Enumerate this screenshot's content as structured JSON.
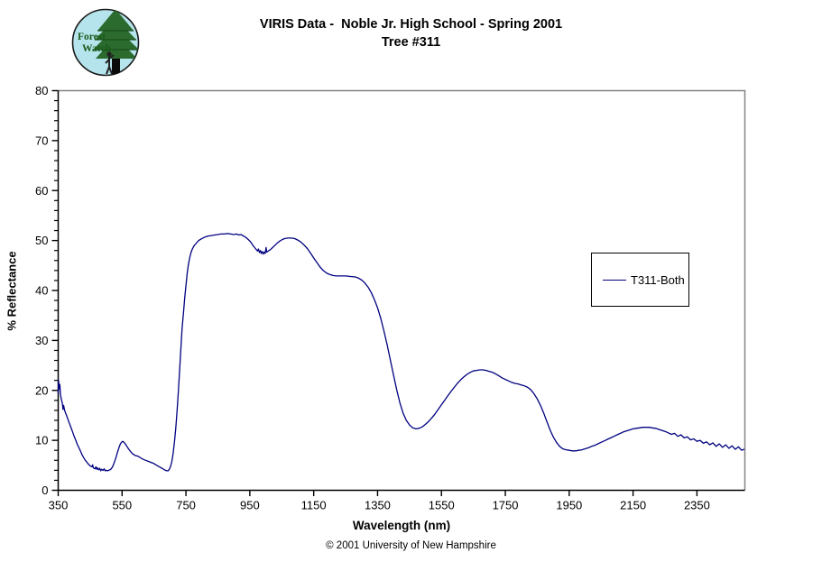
{
  "header": {
    "title_line1": "VIRIS Data -  Noble Jr. High School - Spring 2001",
    "title_line2": "Tree #311",
    "logo": {
      "text_line1": "Forest",
      "text_line2": "Watch"
    }
  },
  "footer": {
    "copyright": "© 2001 University of New Hampshire"
  },
  "colors": {
    "series_line": "#000080",
    "axis": "#000000",
    "plot_border_gray": "#848484",
    "logo_circle_fill": "#b5e4ec",
    "logo_tree_green": "#2c6b2e",
    "logo_text_green": "#1a5a1a"
  },
  "chart_data": {
    "type": "line",
    "title": "VIRIS Data - Noble Jr. High School - Spring 2001, Tree #311",
    "xlabel": "Wavelength (nm)",
    "ylabel": "% Reflectance",
    "xlim": [
      350,
      2500
    ],
    "ylim": [
      0,
      80
    ],
    "x_ticks": [
      350,
      550,
      750,
      950,
      1150,
      1350,
      1550,
      1750,
      1950,
      2150,
      2350
    ],
    "y_ticks": [
      0,
      10,
      20,
      30,
      40,
      50,
      60,
      70,
      80
    ],
    "y_minor_step": 2,
    "grid": false,
    "legend": {
      "position": "middle-right",
      "entries": [
        "T311-Both"
      ]
    },
    "series": [
      {
        "name": "T311-Both",
        "points": [
          [
            350,
            19.5
          ],
          [
            351,
            22.0
          ],
          [
            353,
            20.3
          ],
          [
            355,
            21.2
          ],
          [
            357,
            19.2
          ],
          [
            360,
            18.2
          ],
          [
            363,
            17.4
          ],
          [
            365,
            16.2
          ],
          [
            367,
            17.0
          ],
          [
            370,
            16.0
          ],
          [
            373,
            15.5
          ],
          [
            376,
            15.0
          ],
          [
            380,
            14.3
          ],
          [
            384,
            13.6
          ],
          [
            388,
            12.9
          ],
          [
            392,
            12.2
          ],
          [
            396,
            11.5
          ],
          [
            400,
            10.8
          ],
          [
            405,
            10.0
          ],
          [
            410,
            9.2
          ],
          [
            415,
            8.5
          ],
          [
            420,
            7.8
          ],
          [
            425,
            7.1
          ],
          [
            430,
            6.5
          ],
          [
            435,
            6.0
          ],
          [
            440,
            5.6
          ],
          [
            445,
            5.2
          ],
          [
            450,
            4.9
          ],
          [
            455,
            4.7
          ],
          [
            458,
            5.1
          ],
          [
            460,
            4.5
          ],
          [
            465,
            4.3
          ],
          [
            468,
            4.7
          ],
          [
            470,
            4.2
          ],
          [
            473,
            4.5
          ],
          [
            476,
            4.1
          ],
          [
            480,
            4.4
          ],
          [
            483,
            3.9
          ],
          [
            486,
            4.2
          ],
          [
            490,
            4.0
          ],
          [
            494,
            4.3
          ],
          [
            497,
            3.9
          ],
          [
            500,
            4.0
          ],
          [
            504,
            3.9
          ],
          [
            508,
            4.0
          ],
          [
            512,
            4.1
          ],
          [
            516,
            4.3
          ],
          [
            520,
            4.7
          ],
          [
            524,
            5.3
          ],
          [
            528,
            6.0
          ],
          [
            532,
            6.8
          ],
          [
            536,
            7.7
          ],
          [
            540,
            8.5
          ],
          [
            544,
            9.2
          ],
          [
            548,
            9.6
          ],
          [
            552,
            9.8
          ],
          [
            556,
            9.6
          ],
          [
            560,
            9.3
          ],
          [
            565,
            8.8
          ],
          [
            570,
            8.3
          ],
          [
            575,
            7.9
          ],
          [
            580,
            7.5
          ],
          [
            585,
            7.2
          ],
          [
            590,
            7.0
          ],
          [
            595,
            6.9
          ],
          [
            600,
            6.8
          ],
          [
            608,
            6.5
          ],
          [
            616,
            6.2
          ],
          [
            624,
            6.0
          ],
          [
            632,
            5.8
          ],
          [
            640,
            5.6
          ],
          [
            648,
            5.4
          ],
          [
            656,
            5.1
          ],
          [
            664,
            4.8
          ],
          [
            672,
            4.5
          ],
          [
            680,
            4.2
          ],
          [
            686,
            4.0
          ],
          [
            690,
            3.9
          ],
          [
            694,
            3.9
          ],
          [
            698,
            4.2
          ],
          [
            702,
            4.8
          ],
          [
            706,
            5.8
          ],
          [
            710,
            7.4
          ],
          [
            714,
            9.6
          ],
          [
            718,
            12.4
          ],
          [
            722,
            15.8
          ],
          [
            726,
            19.6
          ],
          [
            730,
            23.8
          ],
          [
            734,
            28.2
          ],
          [
            738,
            32.4
          ],
          [
            742,
            35.2
          ],
          [
            746,
            38.5
          ],
          [
            750,
            41.0
          ],
          [
            754,
            43.5
          ],
          [
            758,
            45.3
          ],
          [
            762,
            46.6
          ],
          [
            766,
            47.6
          ],
          [
            770,
            48.3
          ],
          [
            775,
            48.9
          ],
          [
            780,
            49.3
          ],
          [
            790,
            50.0
          ],
          [
            800,
            50.4
          ],
          [
            810,
            50.7
          ],
          [
            820,
            50.9
          ],
          [
            830,
            51.0
          ],
          [
            840,
            51.1
          ],
          [
            850,
            51.2
          ],
          [
            860,
            51.3
          ],
          [
            870,
            51.3
          ],
          [
            880,
            51.4
          ],
          [
            890,
            51.3
          ],
          [
            900,
            51.2
          ],
          [
            908,
            51.3
          ],
          [
            915,
            51.1
          ],
          [
            922,
            51.2
          ],
          [
            930,
            50.9
          ],
          [
            938,
            50.6
          ],
          [
            945,
            50.2
          ],
          [
            950,
            49.9
          ],
          [
            955,
            49.5
          ],
          [
            960,
            49.0
          ],
          [
            965,
            48.6
          ],
          [
            970,
            48.2
          ],
          [
            974,
            47.9
          ],
          [
            977,
            48.3
          ],
          [
            980,
            47.6
          ],
          [
            983,
            48.0
          ],
          [
            986,
            47.4
          ],
          [
            989,
            47.8
          ],
          [
            992,
            47.3
          ],
          [
            995,
            47.7
          ],
          [
            998,
            47.4
          ],
          [
            1001,
            48.6
          ],
          [
            1003,
            47.7
          ],
          [
            1006,
            47.8
          ],
          [
            1010,
            48.0
          ],
          [
            1015,
            48.2
          ],
          [
            1020,
            48.5
          ],
          [
            1028,
            49.0
          ],
          [
            1036,
            49.5
          ],
          [
            1044,
            49.9
          ],
          [
            1052,
            50.2
          ],
          [
            1060,
            50.4
          ],
          [
            1070,
            50.5
          ],
          [
            1080,
            50.5
          ],
          [
            1090,
            50.4
          ],
          [
            1100,
            50.1
          ],
          [
            1110,
            49.7
          ],
          [
            1120,
            49.1
          ],
          [
            1130,
            48.4
          ],
          [
            1140,
            47.5
          ],
          [
            1150,
            46.5
          ],
          [
            1160,
            45.6
          ],
          [
            1170,
            44.7
          ],
          [
            1180,
            44.0
          ],
          [
            1190,
            43.5
          ],
          [
            1200,
            43.2
          ],
          [
            1210,
            43.0
          ],
          [
            1220,
            42.9
          ],
          [
            1235,
            42.9
          ],
          [
            1250,
            42.9
          ],
          [
            1265,
            42.8
          ],
          [
            1280,
            42.7
          ],
          [
            1290,
            42.5
          ],
          [
            1300,
            42.1
          ],
          [
            1310,
            41.5
          ],
          [
            1320,
            40.7
          ],
          [
            1330,
            39.6
          ],
          [
            1340,
            38.2
          ],
          [
            1350,
            36.5
          ],
          [
            1360,
            34.4
          ],
          [
            1370,
            31.9
          ],
          [
            1380,
            29.1
          ],
          [
            1390,
            26.1
          ],
          [
            1400,
            23.0
          ],
          [
            1410,
            20.1
          ],
          [
            1420,
            17.5
          ],
          [
            1430,
            15.4
          ],
          [
            1440,
            14.0
          ],
          [
            1450,
            13.1
          ],
          [
            1460,
            12.5
          ],
          [
            1470,
            12.3
          ],
          [
            1480,
            12.4
          ],
          [
            1490,
            12.7
          ],
          [
            1500,
            13.2
          ],
          [
            1510,
            13.8
          ],
          [
            1520,
            14.5
          ],
          [
            1530,
            15.3
          ],
          [
            1540,
            16.2
          ],
          [
            1550,
            17.1
          ],
          [
            1560,
            18.0
          ],
          [
            1570,
            18.9
          ],
          [
            1580,
            19.8
          ],
          [
            1590,
            20.6
          ],
          [
            1600,
            21.4
          ],
          [
            1610,
            22.1
          ],
          [
            1620,
            22.7
          ],
          [
            1630,
            23.2
          ],
          [
            1640,
            23.6
          ],
          [
            1650,
            23.9
          ],
          [
            1660,
            24.0
          ],
          [
            1670,
            24.1
          ],
          [
            1680,
            24.1
          ],
          [
            1690,
            24.0
          ],
          [
            1700,
            23.8
          ],
          [
            1710,
            23.6
          ],
          [
            1720,
            23.3
          ],
          [
            1730,
            22.9
          ],
          [
            1740,
            22.5
          ],
          [
            1750,
            22.2
          ],
          [
            1760,
            21.9
          ],
          [
            1770,
            21.6
          ],
          [
            1780,
            21.4
          ],
          [
            1790,
            21.3
          ],
          [
            1800,
            21.1
          ],
          [
            1810,
            20.9
          ],
          [
            1820,
            20.6
          ],
          [
            1830,
            20.1
          ],
          [
            1840,
            19.3
          ],
          [
            1850,
            18.3
          ],
          [
            1860,
            17.0
          ],
          [
            1870,
            15.5
          ],
          [
            1880,
            13.8
          ],
          [
            1890,
            12.1
          ],
          [
            1900,
            10.7
          ],
          [
            1910,
            9.6
          ],
          [
            1920,
            8.8
          ],
          [
            1930,
            8.3
          ],
          [
            1940,
            8.1
          ],
          [
            1950,
            8.0
          ],
          [
            1960,
            7.9
          ],
          [
            1970,
            7.9
          ],
          [
            1980,
            8.0
          ],
          [
            1990,
            8.1
          ],
          [
            2000,
            8.3
          ],
          [
            2010,
            8.5
          ],
          [
            2020,
            8.8
          ],
          [
            2030,
            9.0
          ],
          [
            2040,
            9.3
          ],
          [
            2050,
            9.6
          ],
          [
            2060,
            9.9
          ],
          [
            2070,
            10.2
          ],
          [
            2080,
            10.5
          ],
          [
            2090,
            10.8
          ],
          [
            2100,
            11.1
          ],
          [
            2110,
            11.4
          ],
          [
            2120,
            11.7
          ],
          [
            2130,
            11.9
          ],
          [
            2140,
            12.1
          ],
          [
            2150,
            12.3
          ],
          [
            2160,
            12.4
          ],
          [
            2170,
            12.5
          ],
          [
            2180,
            12.6
          ],
          [
            2190,
            12.6
          ],
          [
            2200,
            12.6
          ],
          [
            2210,
            12.5
          ],
          [
            2220,
            12.4
          ],
          [
            2230,
            12.2
          ],
          [
            2240,
            12.0
          ],
          [
            2250,
            11.8
          ],
          [
            2260,
            11.5
          ],
          [
            2270,
            11.2
          ],
          [
            2280,
            11.4
          ],
          [
            2290,
            10.8
          ],
          [
            2300,
            11.1
          ],
          [
            2310,
            10.5
          ],
          [
            2320,
            10.7
          ],
          [
            2330,
            10.1
          ],
          [
            2340,
            10.3
          ],
          [
            2350,
            9.8
          ],
          [
            2360,
            10.0
          ],
          [
            2370,
            9.4
          ],
          [
            2380,
            9.7
          ],
          [
            2390,
            9.1
          ],
          [
            2400,
            9.5
          ],
          [
            2410,
            8.8
          ],
          [
            2420,
            9.3
          ],
          [
            2430,
            8.6
          ],
          [
            2440,
            9.1
          ],
          [
            2450,
            8.4
          ],
          [
            2460,
            8.9
          ],
          [
            2470,
            8.2
          ],
          [
            2480,
            8.7
          ],
          [
            2490,
            8.0
          ],
          [
            2497,
            8.2
          ]
        ]
      }
    ]
  }
}
